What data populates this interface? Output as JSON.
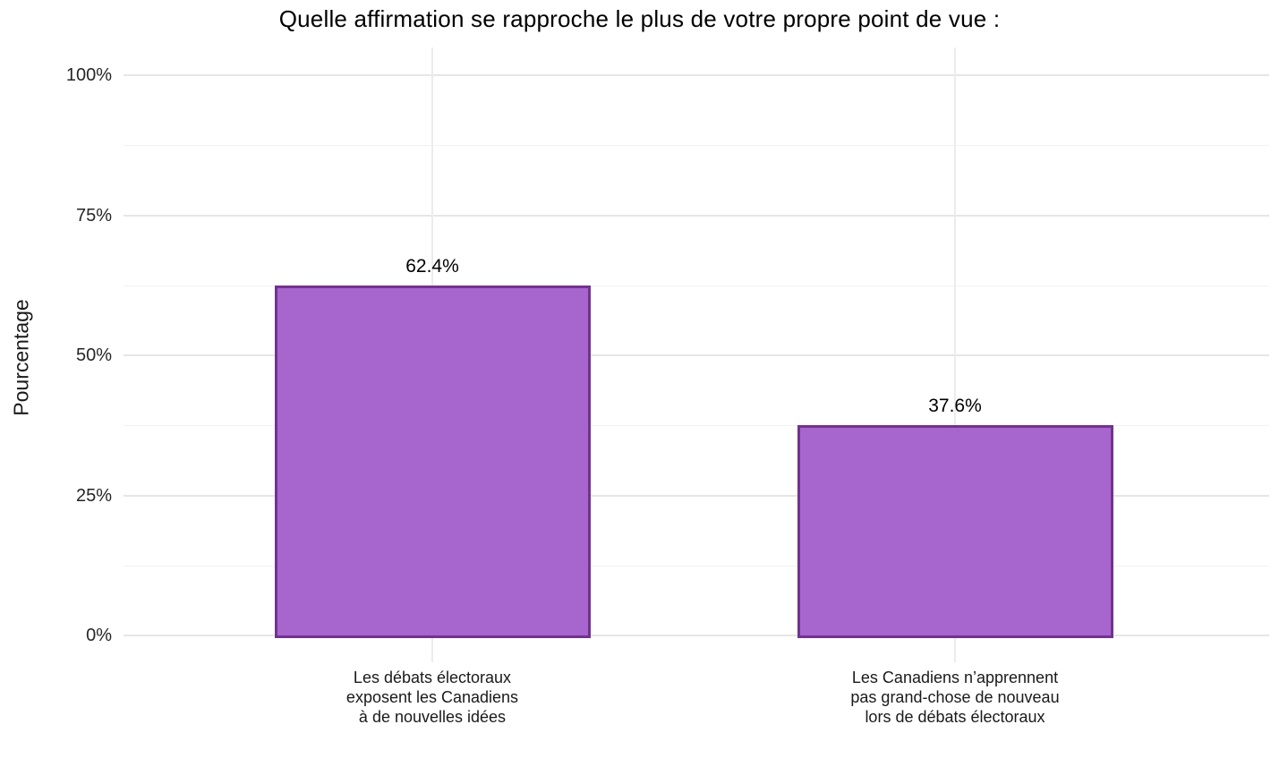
{
  "title": "Quelle affirmation se rapproche le plus de votre propre point de vue :",
  "colors": {
    "bar_fill": "#a765ce",
    "bar_border": "#71338e",
    "grid_major": "#e6e6e6",
    "grid_minor": "#f2f2f2",
    "background": "#ffffff",
    "text": "#000000"
  },
  "chart_data": {
    "type": "bar",
    "title": "Quelle affirmation se rapproche le plus de votre propre point de vue :",
    "xlabel": "",
    "ylabel": "Pourcentage",
    "categories": [
      "Les débats électoraux\nexposent les Canadiens\nà de nouvelles idées",
      "Les Canadiens n’apprennent\npas grand-chose de nouveau\nlors de débats électoraux"
    ],
    "values": [
      62.4,
      37.6
    ],
    "value_labels": [
      "62.4%",
      "37.6%"
    ],
    "yticks": [
      0,
      25,
      50,
      75,
      100
    ],
    "ytick_labels": [
      "0%",
      "25%",
      "50%",
      "75%",
      "100%"
    ],
    "minor_yticks": [
      12.5,
      37.5,
      62.5,
      87.5
    ],
    "ylim": [
      0,
      100
    ],
    "grid": "horizontal-major-minor, vertical-at-categories",
    "legend": false,
    "bar_orientation": "vertical"
  }
}
